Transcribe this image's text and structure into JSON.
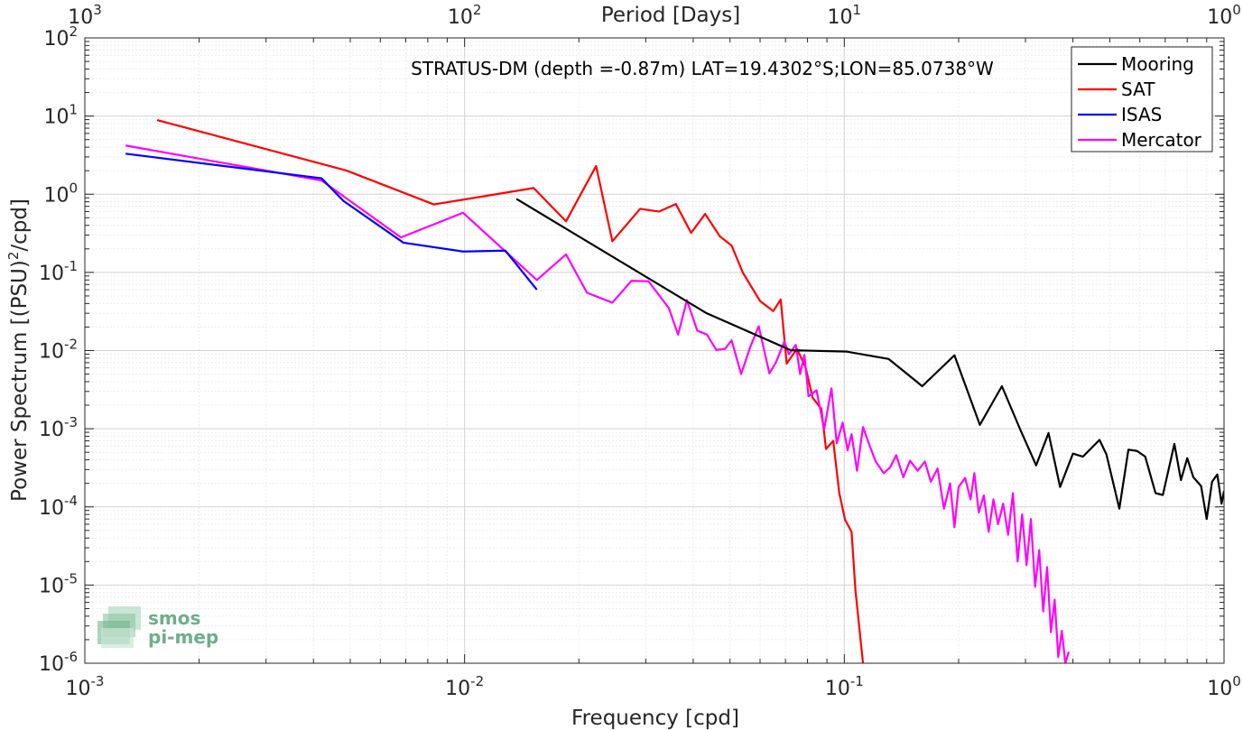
{
  "chart_data": {
    "type": "line",
    "title": "STRATUS-DM (depth =-0.87m) LAT=19.4302°S;LON=85.0738°W",
    "xlabel": "Frequency [cpd]",
    "ylabel": "Power Spectrum [(PSU)^2/cpd]",
    "ylabel_parts": {
      "prefix": "Power Spectrum [(PSU)",
      "sup": "2",
      "suffix": "/cpd]"
    },
    "top_axis_label": "Period [Days]",
    "x_scale": "log",
    "y_scale": "log",
    "xlim": [
      0.001,
      1
    ],
    "ylim": [
      1e-06,
      100
    ],
    "grid": true,
    "legend_position": "top-right",
    "x_ticks": [
      {
        "value": 0.001,
        "base": "10",
        "exp": "-3"
      },
      {
        "value": 0.01,
        "base": "10",
        "exp": "-2"
      },
      {
        "value": 0.1,
        "base": "10",
        "exp": "-1"
      },
      {
        "value": 1,
        "base": "10",
        "exp": "0"
      }
    ],
    "top_ticks": [
      {
        "value": 0.001,
        "base": "10",
        "exp": "3"
      },
      {
        "value": 0.01,
        "base": "10",
        "exp": "2"
      },
      {
        "value": 0.1,
        "base": "10",
        "exp": "1"
      },
      {
        "value": 1,
        "base": "10",
        "exp": "0"
      }
    ],
    "y_ticks": [
      {
        "value": 1e-06,
        "base": "10",
        "exp": "-6"
      },
      {
        "value": 1e-05,
        "base": "10",
        "exp": "-5"
      },
      {
        "value": 0.0001,
        "base": "10",
        "exp": "-4"
      },
      {
        "value": 0.001,
        "base": "10",
        "exp": "-3"
      },
      {
        "value": 0.01,
        "base": "10",
        "exp": "-2"
      },
      {
        "value": 0.1,
        "base": "10",
        "exp": "-1"
      },
      {
        "value": 1,
        "base": "10",
        "exp": "0"
      },
      {
        "value": 10,
        "base": "10",
        "exp": "1"
      },
      {
        "value": 100,
        "base": "10",
        "exp": "2"
      }
    ],
    "series": [
      {
        "name": "Mooring",
        "color": "#000000",
        "points": [
          [
            0.0137,
            0.87
          ],
          [
            0.0434,
            0.03
          ],
          [
            0.0723,
            0.0101
          ],
          [
            0.1015,
            0.0097
          ],
          [
            0.1309,
            0.0078
          ],
          [
            0.1604,
            0.0035
          ],
          [
            0.195,
            0.0087
          ],
          [
            0.2275,
            0.00112
          ],
          [
            0.26,
            0.0035
          ],
          [
            0.29,
            0.001
          ],
          [
            0.32,
            0.00034
          ],
          [
            0.345,
            0.00088
          ],
          [
            0.37,
            0.00018
          ],
          [
            0.4,
            0.00048
          ],
          [
            0.425,
            0.00044
          ],
          [
            0.47,
            0.00072
          ],
          [
            0.49,
            0.00047
          ],
          [
            0.53,
            9.5e-05
          ],
          [
            0.56,
            0.00054
          ],
          [
            0.59,
            0.00052
          ],
          [
            0.62,
            0.00044
          ],
          [
            0.66,
            0.00015
          ],
          [
            0.69,
            0.000142
          ],
          [
            0.74,
            0.00064
          ],
          [
            0.77,
            0.00022
          ],
          [
            0.8,
            0.00042
          ],
          [
            0.83,
            0.00024
          ],
          [
            0.87,
            0.000185
          ],
          [
            0.9,
            7e-05
          ],
          [
            0.93,
            0.00021
          ],
          [
            0.96,
            0.00026
          ],
          [
            0.985,
            0.00011
          ],
          [
            1.0,
            0.00016
          ]
        ]
      },
      {
        "name": "SAT",
        "color": "#ff0000",
        "points": [
          [
            0.00155,
            8.9
          ],
          [
            0.0049,
            2.0
          ],
          [
            0.0083,
            0.74
          ],
          [
            0.0152,
            1.2
          ],
          [
            0.0185,
            0.45
          ],
          [
            0.0222,
            2.3
          ],
          [
            0.0245,
            0.25
          ],
          [
            0.029,
            0.65
          ],
          [
            0.0325,
            0.6
          ],
          [
            0.036,
            0.75
          ],
          [
            0.0395,
            0.32
          ],
          [
            0.043,
            0.56
          ],
          [
            0.047,
            0.29
          ],
          [
            0.0505,
            0.22
          ],
          [
            0.054,
            0.1
          ],
          [
            0.06,
            0.043
          ],
          [
            0.065,
            0.032
          ],
          [
            0.068,
            0.045
          ],
          [
            0.0705,
            0.0068
          ],
          [
            0.075,
            0.0105
          ],
          [
            0.079,
            0.0062
          ],
          [
            0.0825,
            0.0025
          ],
          [
            0.087,
            0.0018
          ],
          [
            0.0895,
            0.00055
          ],
          [
            0.0935,
            0.0007
          ],
          [
            0.097,
            0.00015
          ],
          [
            0.1005,
            6.8e-05
          ],
          [
            0.1045,
            4.8e-05
          ],
          [
            0.107,
            8.5e-06
          ],
          [
            0.112,
            1e-06
          ]
        ]
      },
      {
        "name": "ISAS",
        "color": "#0000ff",
        "points": [
          [
            0.00128,
            3.3
          ],
          [
            0.0042,
            1.6
          ],
          [
            0.0048,
            0.82
          ],
          [
            0.0069,
            0.24
          ],
          [
            0.0099,
            0.185
          ],
          [
            0.0128,
            0.19
          ],
          [
            0.0155,
            0.06
          ]
        ]
      },
      {
        "name": "Mercator",
        "color": "#ff00ff",
        "points": [
          [
            0.00128,
            4.2
          ],
          [
            0.0042,
            1.5
          ],
          [
            0.0068,
            0.28
          ],
          [
            0.0099,
            0.58
          ],
          [
            0.0155,
            0.08
          ],
          [
            0.0185,
            0.17
          ],
          [
            0.021,
            0.055
          ],
          [
            0.0245,
            0.041
          ],
          [
            0.0275,
            0.078
          ],
          [
            0.0305,
            0.077
          ],
          [
            0.0345,
            0.035
          ],
          [
            0.0365,
            0.016
          ],
          [
            0.0385,
            0.044
          ],
          [
            0.041,
            0.018
          ],
          [
            0.0435,
            0.016
          ],
          [
            0.046,
            0.0102
          ],
          [
            0.0485,
            0.0105
          ],
          [
            0.0505,
            0.0135
          ],
          [
            0.0535,
            0.005
          ],
          [
            0.0565,
            0.011
          ],
          [
            0.0595,
            0.0205
          ],
          [
            0.0635,
            0.0051
          ],
          [
            0.066,
            0.007
          ],
          [
            0.0695,
            0.013
          ],
          [
            0.0715,
            0.009
          ],
          [
            0.0745,
            0.0118
          ],
          [
            0.0765,
            0.005
          ],
          [
            0.0785,
            0.0088
          ],
          [
            0.0805,
            0.0026
          ],
          [
            0.0845,
            0.0031
          ],
          [
            0.0885,
            0.00098
          ],
          [
            0.0925,
            0.0033
          ],
          [
            0.0955,
            0.00065
          ],
          [
            0.099,
            0.0012
          ],
          [
            0.102,
            0.00053
          ],
          [
            0.1045,
            0.00085
          ],
          [
            0.108,
            0.00029
          ],
          [
            0.112,
            0.00105
          ],
          [
            0.117,
            0.00058
          ],
          [
            0.121,
            0.00038
          ],
          [
            0.127,
            0.00027
          ],
          [
            0.132,
            0.00032
          ],
          [
            0.137,
            0.00046
          ],
          [
            0.143,
            0.00024
          ],
          [
            0.149,
            0.00039
          ],
          [
            0.156,
            0.00029
          ],
          [
            0.163,
            0.00038
          ],
          [
            0.169,
            0.00021
          ],
          [
            0.176,
            0.00031
          ],
          [
            0.183,
            9.5e-05
          ],
          [
            0.19,
            0.0002
          ],
          [
            0.195,
            5.5e-05
          ],
          [
            0.2,
            0.00018
          ],
          [
            0.208,
            0.000235
          ],
          [
            0.215,
            0.000125
          ],
          [
            0.22,
            0.00027
          ],
          [
            0.226,
            8.5e-05
          ],
          [
            0.233,
            0.00014
          ],
          [
            0.24,
            4.8e-05
          ],
          [
            0.247,
            0.000125
          ],
          [
            0.254,
            6e-05
          ],
          [
            0.262,
            0.00011
          ],
          [
            0.27,
            4.4e-05
          ],
          [
            0.278,
            0.00015
          ],
          [
            0.286,
            2e-05
          ],
          [
            0.294,
            8e-05
          ],
          [
            0.302,
            1.8e-05
          ],
          [
            0.31,
            7e-05
          ],
          [
            0.318,
            9.5e-06
          ],
          [
            0.326,
            2.8e-05
          ],
          [
            0.334,
            4.6e-06
          ],
          [
            0.342,
            1.7e-05
          ],
          [
            0.35,
            2.5e-06
          ],
          [
            0.358,
            6.5e-06
          ],
          [
            0.366,
            1.2e-06
          ],
          [
            0.374,
            2.6e-06
          ],
          [
            0.382,
            1e-06
          ],
          [
            0.39,
            1.4e-06
          ]
        ]
      }
    ],
    "watermark": {
      "line1": "smos",
      "line2": "pi-mep"
    }
  }
}
